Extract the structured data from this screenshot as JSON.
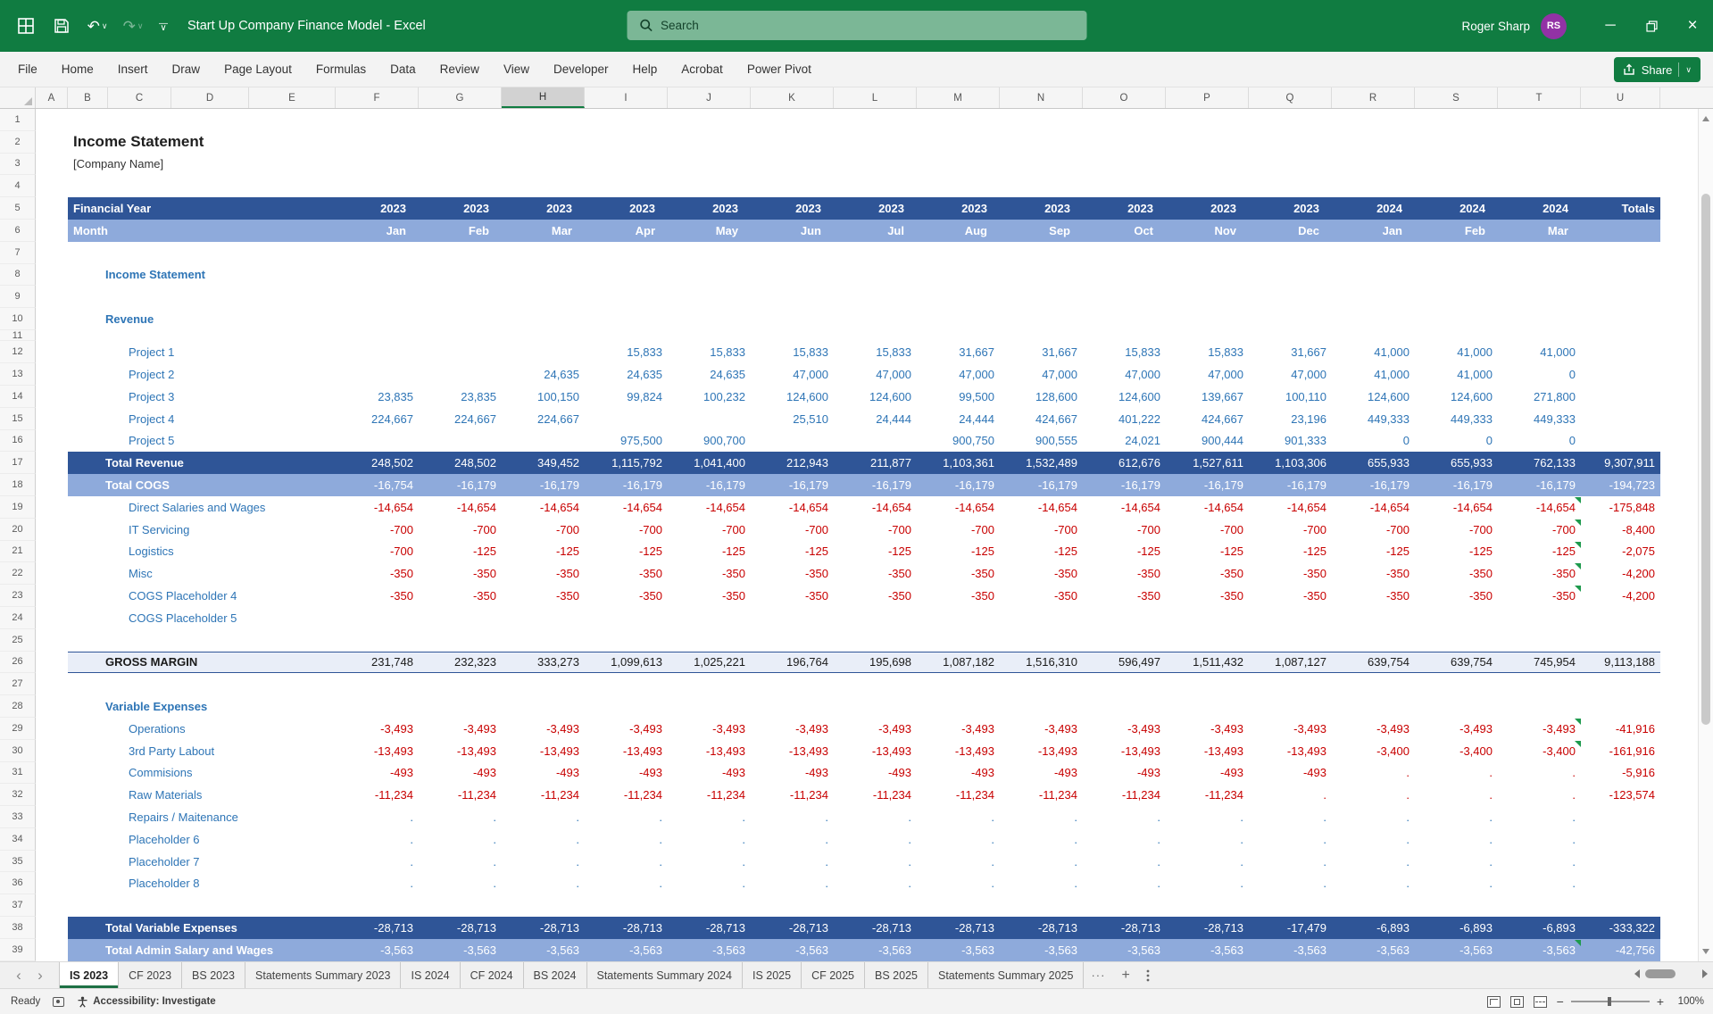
{
  "colors": {
    "excel_green": "#107C41",
    "band_dark_blue": "#2F5597",
    "band_light_blue": "#8EAADB",
    "value_blue": "#2E75B6",
    "value_red": "#C80000",
    "avatar_purple": "#9232A5"
  },
  "titlebar": {
    "workbook_title": "Start Up Company Finance Model - Excel",
    "search_placeholder": "Search",
    "user_name": "Roger Sharp",
    "user_initials": "RS"
  },
  "menubar": {
    "items": [
      "File",
      "Home",
      "Insert",
      "Draw",
      "Page Layout",
      "Formulas",
      "Data",
      "Review",
      "View",
      "Developer",
      "Help",
      "Acrobat",
      "Power Pivot"
    ],
    "share_label": "Share"
  },
  "grid": {
    "letters": [
      "A",
      "B",
      "C",
      "D",
      "E",
      "F",
      "G",
      "H",
      "I",
      "J",
      "K",
      "L",
      "M",
      "N",
      "O",
      "P",
      "Q",
      "R",
      "S",
      "T",
      "U"
    ],
    "selected_column": "H"
  },
  "sheet": {
    "title": "Income Statement",
    "subtitle": "[Company Name]",
    "fy_label": "Financial Year",
    "month_label": "Month",
    "totals_label": "Totals",
    "years": [
      "2023",
      "2023",
      "2023",
      "2023",
      "2023",
      "2023",
      "2023",
      "2023",
      "2023",
      "2023",
      "2023",
      "2023",
      "2024",
      "2024",
      "2024"
    ],
    "months": [
      "Jan",
      "Feb",
      "Mar",
      "Apr",
      "May",
      "Jun",
      "Jul",
      "Aug",
      "Sep",
      "Oct",
      "Nov",
      "Dec",
      "Jan",
      "Feb",
      "Mar"
    ],
    "rows": [
      {
        "n": 1
      },
      {
        "n": 2,
        "label": "Income Statement",
        "style": "title",
        "ind": 0
      },
      {
        "n": 3,
        "label": "[Company Name]",
        "style": "subtitle",
        "ind": 0
      },
      {
        "n": 4
      },
      {
        "n": 5,
        "label": "Financial Year",
        "style": "dark",
        "type": "fy",
        "ind": 0
      },
      {
        "n": 6,
        "label": "Month",
        "style": "light",
        "type": "mo",
        "ind": 0
      },
      {
        "n": 7
      },
      {
        "n": 8,
        "label": "Income Statement",
        "style": "sec",
        "ind": 1
      },
      {
        "n": 9
      },
      {
        "n": 10,
        "label": "Revenue",
        "style": "sec",
        "ind": 1
      },
      {
        "n": 11,
        "half": true
      },
      {
        "n": 12,
        "label": "Project 1",
        "style": "blue",
        "ind": 2,
        "v": [
          "",
          "",
          "",
          "15,833",
          "15,833",
          "15,833",
          "15,833",
          "31,667",
          "31,667",
          "15,833",
          "15,833",
          "31,667",
          "41,000",
          "41,000",
          "41,000",
          ""
        ]
      },
      {
        "n": 13,
        "label": "Project 2",
        "style": "blue",
        "ind": 2,
        "v": [
          "",
          "",
          "24,635",
          "24,635",
          "24,635",
          "47,000",
          "47,000",
          "47,000",
          "47,000",
          "47,000",
          "47,000",
          "47,000",
          "41,000",
          "41,000",
          "0",
          ""
        ]
      },
      {
        "n": 14,
        "label": "Project 3",
        "style": "blue",
        "ind": 2,
        "v": [
          "23,835",
          "23,835",
          "100,150",
          "99,824",
          "100,232",
          "124,600",
          "124,600",
          "99,500",
          "128,600",
          "124,600",
          "139,667",
          "100,110",
          "124,600",
          "124,600",
          "271,800",
          ""
        ]
      },
      {
        "n": 15,
        "label": "Project 4",
        "style": "blue",
        "ind": 2,
        "v": [
          "224,667",
          "224,667",
          "224,667",
          "",
          "",
          "25,510",
          "24,444",
          "24,444",
          "424,667",
          "401,222",
          "424,667",
          "23,196",
          "449,333",
          "449,333",
          "449,333",
          ""
        ]
      },
      {
        "n": 16,
        "label": "Project 5",
        "style": "blue",
        "ind": 2,
        "v": [
          "",
          "",
          "",
          "975,500",
          "900,700",
          "",
          "",
          "900,750",
          "900,555",
          "24,021",
          "900,444",
          "901,333",
          "0",
          "0",
          "0",
          ""
        ]
      },
      {
        "n": 17,
        "label": "Total Revenue",
        "style": "dark",
        "ind": 1,
        "v": [
          "248,502",
          "248,502",
          "349,452",
          "1,115,792",
          "1,041,400",
          "212,943",
          "211,877",
          "1,103,361",
          "1,532,489",
          "612,676",
          "1,527,611",
          "1,103,306",
          "655,933",
          "655,933",
          "762,133",
          "9,307,911"
        ]
      },
      {
        "n": 18,
        "label": "Total COGS",
        "style": "light",
        "ind": 1,
        "v": [
          "-16,754",
          "-16,179",
          "-16,179",
          "-16,179",
          "-16,179",
          "-16,179",
          "-16,179",
          "-16,179",
          "-16,179",
          "-16,179",
          "-16,179",
          "-16,179",
          "-16,179",
          "-16,179",
          "-16,179",
          "-194,723"
        ]
      },
      {
        "n": 19,
        "label": "Direct Salaries and Wages",
        "style": "red",
        "ind": 2,
        "tri": true,
        "v": [
          "-14,654",
          "-14,654",
          "-14,654",
          "-14,654",
          "-14,654",
          "-14,654",
          "-14,654",
          "-14,654",
          "-14,654",
          "-14,654",
          "-14,654",
          "-14,654",
          "-14,654",
          "-14,654",
          "-14,654",
          "-175,848"
        ]
      },
      {
        "n": 20,
        "label": "IT Servicing",
        "style": "red",
        "ind": 2,
        "tri": true,
        "v": [
          "-700",
          "-700",
          "-700",
          "-700",
          "-700",
          "-700",
          "-700",
          "-700",
          "-700",
          "-700",
          "-700",
          "-700",
          "-700",
          "-700",
          "-700",
          "-8,400"
        ]
      },
      {
        "n": 21,
        "label": "Logistics",
        "style": "red",
        "ind": 2,
        "tri": true,
        "v": [
          "-700",
          "-125",
          "-125",
          "-125",
          "-125",
          "-125",
          "-125",
          "-125",
          "-125",
          "-125",
          "-125",
          "-125",
          "-125",
          "-125",
          "-125",
          "-2,075"
        ]
      },
      {
        "n": 22,
        "label": "Misc",
        "style": "red",
        "ind": 2,
        "tri": true,
        "v": [
          "-350",
          "-350",
          "-350",
          "-350",
          "-350",
          "-350",
          "-350",
          "-350",
          "-350",
          "-350",
          "-350",
          "-350",
          "-350",
          "-350",
          "-350",
          "-4,200"
        ]
      },
      {
        "n": 23,
        "label": "COGS Placeholder 4",
        "style": "red",
        "ind": 2,
        "tri": true,
        "v": [
          "-350",
          "-350",
          "-350",
          "-350",
          "-350",
          "-350",
          "-350",
          "-350",
          "-350",
          "-350",
          "-350",
          "-350",
          "-350",
          "-350",
          "-350",
          "-4,200"
        ]
      },
      {
        "n": 24,
        "label": "COGS Placeholder 5",
        "style": "blue",
        "ind": 2
      },
      {
        "n": 25
      },
      {
        "n": 26,
        "label": "GROSS MARGIN",
        "style": "gross",
        "ind": 1,
        "v": [
          "231,748",
          "232,323",
          "333,273",
          "1,099,613",
          "1,025,221",
          "196,764",
          "195,698",
          "1,087,182",
          "1,516,310",
          "596,497",
          "1,511,432",
          "1,087,127",
          "639,754",
          "639,754",
          "745,954",
          "9,113,188"
        ]
      },
      {
        "n": 27
      },
      {
        "n": 28,
        "label": "Variable Expenses",
        "style": "sec",
        "ind": 1
      },
      {
        "n": 29,
        "label": "Operations",
        "style": "red",
        "ind": 2,
        "tri": true,
        "v": [
          "-3,493",
          "-3,493",
          "-3,493",
          "-3,493",
          "-3,493",
          "-3,493",
          "-3,493",
          "-3,493",
          "-3,493",
          "-3,493",
          "-3,493",
          "-3,493",
          "-3,493",
          "-3,493",
          "-3,493",
          "-41,916"
        ]
      },
      {
        "n": 30,
        "label": "3rd Party Labout",
        "style": "red",
        "ind": 2,
        "tri": true,
        "v": [
          "-13,493",
          "-13,493",
          "-13,493",
          "-13,493",
          "-13,493",
          "-13,493",
          "-13,493",
          "-13,493",
          "-13,493",
          "-13,493",
          "-13,493",
          "-13,493",
          "-3,400",
          "-3,400",
          "-3,400",
          "-161,916"
        ]
      },
      {
        "n": 31,
        "label": "Commisions",
        "style": "red",
        "ind": 2,
        "v": [
          "-493",
          "-493",
          "-493",
          "-493",
          "-493",
          "-493",
          "-493",
          "-493",
          "-493",
          "-493",
          "-493",
          "-493",
          ".",
          ".",
          ".",
          "-5,916"
        ]
      },
      {
        "n": 32,
        "label": "Raw Materials",
        "style": "red",
        "ind": 2,
        "v": [
          "-11,234",
          "-11,234",
          "-11,234",
          "-11,234",
          "-11,234",
          "-11,234",
          "-11,234",
          "-11,234",
          "-11,234",
          "-11,234",
          "-11,234",
          ".",
          ".",
          ".",
          ".",
          "-123,574"
        ]
      },
      {
        "n": 33,
        "label": "Repairs / Maitenance",
        "style": "blue",
        "ind": 2,
        "v": [
          ".",
          ".",
          ".",
          ".",
          ".",
          ".",
          ".",
          ".",
          ".",
          ".",
          ".",
          ".",
          ".",
          ".",
          ".",
          ""
        ]
      },
      {
        "n": 34,
        "label": "Placeholder 6",
        "style": "blue",
        "ind": 2,
        "v": [
          ".",
          ".",
          ".",
          ".",
          ".",
          ".",
          ".",
          ".",
          ".",
          ".",
          ".",
          ".",
          ".",
          ".",
          ".",
          ""
        ]
      },
      {
        "n": 35,
        "label": "Placeholder 7",
        "style": "blue",
        "ind": 2,
        "v": [
          ".",
          ".",
          ".",
          ".",
          ".",
          ".",
          ".",
          ".",
          ".",
          ".",
          ".",
          ".",
          ".",
          ".",
          ".",
          ""
        ]
      },
      {
        "n": 36,
        "label": "Placeholder 8",
        "style": "blue",
        "ind": 2,
        "v": [
          ".",
          ".",
          ".",
          ".",
          ".",
          ".",
          ".",
          ".",
          ".",
          ".",
          ".",
          ".",
          ".",
          ".",
          ".",
          ""
        ]
      },
      {
        "n": 37
      },
      {
        "n": 38,
        "label": "Total Variable Expenses",
        "style": "dark",
        "ind": 1,
        "v": [
          "-28,713",
          "-28,713",
          "-28,713",
          "-28,713",
          "-28,713",
          "-28,713",
          "-28,713",
          "-28,713",
          "-28,713",
          "-28,713",
          "-28,713",
          "-17,479",
          "-6,893",
          "-6,893",
          "-6,893",
          "-333,322"
        ]
      },
      {
        "n": 39,
        "label": "Total Admin Salary and Wages",
        "style": "light",
        "ind": 1,
        "tri": true,
        "v": [
          "-3,563",
          "-3,563",
          "-3,563",
          "-3,563",
          "-3,563",
          "-3,563",
          "-3,563",
          "-3,563",
          "-3,563",
          "-3,563",
          "-3,563",
          "-3,563",
          "-3,563",
          "-3,563",
          "-3,563",
          "-42,756"
        ]
      }
    ]
  },
  "tabbar": {
    "tabs": [
      {
        "label": "IS 2023",
        "active": true
      },
      {
        "label": "CF 2023"
      },
      {
        "label": "BS 2023"
      },
      {
        "label": "Statements Summary 2023"
      },
      {
        "label": "IS 2024"
      },
      {
        "label": "CF 2024"
      },
      {
        "label": "BS 2024"
      },
      {
        "label": "Statements Summary 2024"
      },
      {
        "label": "IS 2025"
      },
      {
        "label": "CF 2025"
      },
      {
        "label": "BS 2025"
      },
      {
        "label": "Statements Summary 2025"
      }
    ],
    "more_label": "···",
    "add_label": "+"
  },
  "statusbar": {
    "ready": "Ready",
    "accessibility": "Accessibility: Investigate",
    "zoom_level": "100%"
  }
}
